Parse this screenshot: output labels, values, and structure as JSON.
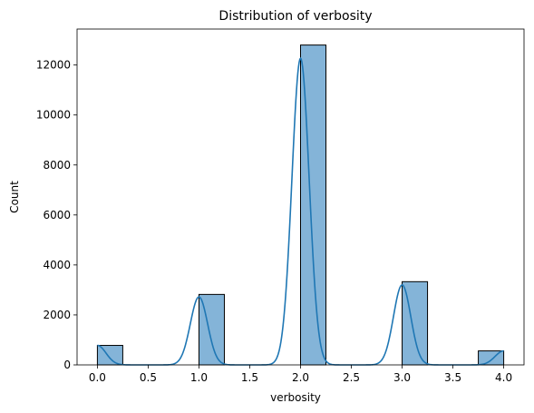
{
  "chart_data": {
    "type": "bar",
    "subtype": "histogram-with-kde",
    "title": "Distribution of verbosity",
    "xlabel": "verbosity",
    "ylabel": "Count",
    "xlim": [
      -0.2,
      4.2
    ],
    "ylim": [
      0,
      13440
    ],
    "xticks": [
      "0.0",
      "0.5",
      "1.0",
      "1.5",
      "2.0",
      "2.5",
      "3.0",
      "3.5",
      "4.0"
    ],
    "yticks": [
      "0",
      "2000",
      "4000",
      "6000",
      "8000",
      "10000",
      "12000"
    ],
    "bins": [
      {
        "x0": 0.0,
        "x1": 0.25,
        "count": 780
      },
      {
        "x0": 1.0,
        "x1": 1.25,
        "count": 2820
      },
      {
        "x0": 2.0,
        "x1": 2.25,
        "count": 12800
      },
      {
        "x0": 3.0,
        "x1": 3.25,
        "count": 3330
      },
      {
        "x0": 3.75,
        "x1": 4.0,
        "count": 560
      }
    ],
    "kde_peaks": [
      {
        "x": 0.0,
        "y": 780
      },
      {
        "x": 1.0,
        "y": 2720
      },
      {
        "x": 2.0,
        "y": 12270
      },
      {
        "x": 3.0,
        "y": 3200
      },
      {
        "x": 4.0,
        "y": 560
      }
    ],
    "grid": false,
    "colors": {
      "bar_fill": "#84b4d8",
      "bar_edge": "#000000",
      "kde_line": "#1f77b4"
    }
  }
}
